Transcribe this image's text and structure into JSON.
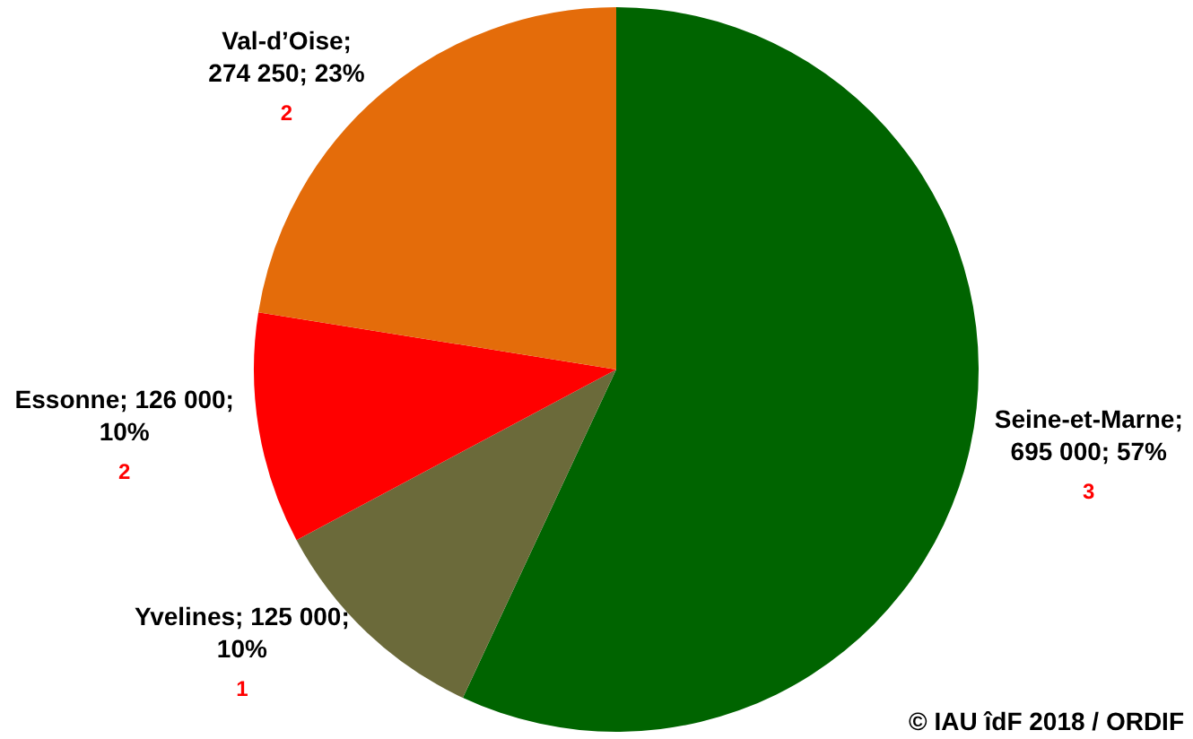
{
  "chart_data": {
    "type": "pie",
    "categories": [
      "Seine-et-Marne",
      "Yvelines",
      "Essonne",
      "Val-d’Oise"
    ],
    "values": [
      695000,
      125000,
      126000,
      274250
    ],
    "colors": [
      "#006400",
      "#6b6a3a",
      "#ff0000",
      "#e46c0a"
    ],
    "value_labels": [
      "; 695 000; 57%",
      "; 125 000; 10%",
      "; 126 000; 10%",
      "; 274 250; 23%"
    ],
    "annotations": [
      {
        "text": "3",
        "x": "Seine-et-Marne"
      },
      {
        "text": "1",
        "x": "Yvelines"
      },
      {
        "text": "2",
        "x": "Essonne"
      },
      {
        "text": "2",
        "x": "Val-d’Oise"
      },
      "© IAU îdF 2018 / ORDIF"
    ],
    "legend": false
  }
}
